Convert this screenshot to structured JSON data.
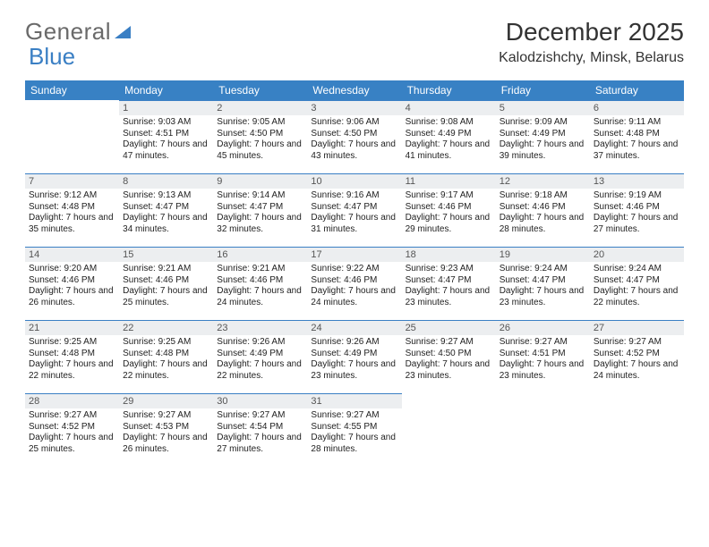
{
  "logo": {
    "part1": "General",
    "part2": "Blue"
  },
  "title": "December 2025",
  "location": "Kalodzishchy, Minsk, Belarus",
  "colors": {
    "header_bg": "#3881c4",
    "header_text": "#ffffff",
    "daynum_bg": "#eceef0",
    "row_border": "#3a7fc4",
    "body_text": "#222222",
    "title_text": "#333333",
    "logo_gray": "#6a6a6a",
    "logo_blue": "#3a7fc4"
  },
  "weekdays": [
    "Sunday",
    "Monday",
    "Tuesday",
    "Wednesday",
    "Thursday",
    "Friday",
    "Saturday"
  ],
  "weeks": [
    [
      {
        "n": "",
        "sr": "",
        "ss": "",
        "dl": ""
      },
      {
        "n": "1",
        "sr": "9:03 AM",
        "ss": "4:51 PM",
        "dl": "7 hours and 47 minutes."
      },
      {
        "n": "2",
        "sr": "9:05 AM",
        "ss": "4:50 PM",
        "dl": "7 hours and 45 minutes."
      },
      {
        "n": "3",
        "sr": "9:06 AM",
        "ss": "4:50 PM",
        "dl": "7 hours and 43 minutes."
      },
      {
        "n": "4",
        "sr": "9:08 AM",
        "ss": "4:49 PM",
        "dl": "7 hours and 41 minutes."
      },
      {
        "n": "5",
        "sr": "9:09 AM",
        "ss": "4:49 PM",
        "dl": "7 hours and 39 minutes."
      },
      {
        "n": "6",
        "sr": "9:11 AM",
        "ss": "4:48 PM",
        "dl": "7 hours and 37 minutes."
      }
    ],
    [
      {
        "n": "7",
        "sr": "9:12 AM",
        "ss": "4:48 PM",
        "dl": "7 hours and 35 minutes."
      },
      {
        "n": "8",
        "sr": "9:13 AM",
        "ss": "4:47 PM",
        "dl": "7 hours and 34 minutes."
      },
      {
        "n": "9",
        "sr": "9:14 AM",
        "ss": "4:47 PM",
        "dl": "7 hours and 32 minutes."
      },
      {
        "n": "10",
        "sr": "9:16 AM",
        "ss": "4:47 PM",
        "dl": "7 hours and 31 minutes."
      },
      {
        "n": "11",
        "sr": "9:17 AM",
        "ss": "4:46 PM",
        "dl": "7 hours and 29 minutes."
      },
      {
        "n": "12",
        "sr": "9:18 AM",
        "ss": "4:46 PM",
        "dl": "7 hours and 28 minutes."
      },
      {
        "n": "13",
        "sr": "9:19 AM",
        "ss": "4:46 PM",
        "dl": "7 hours and 27 minutes."
      }
    ],
    [
      {
        "n": "14",
        "sr": "9:20 AM",
        "ss": "4:46 PM",
        "dl": "7 hours and 26 minutes."
      },
      {
        "n": "15",
        "sr": "9:21 AM",
        "ss": "4:46 PM",
        "dl": "7 hours and 25 minutes."
      },
      {
        "n": "16",
        "sr": "9:21 AM",
        "ss": "4:46 PM",
        "dl": "7 hours and 24 minutes."
      },
      {
        "n": "17",
        "sr": "9:22 AM",
        "ss": "4:46 PM",
        "dl": "7 hours and 24 minutes."
      },
      {
        "n": "18",
        "sr": "9:23 AM",
        "ss": "4:47 PM",
        "dl": "7 hours and 23 minutes."
      },
      {
        "n": "19",
        "sr": "9:24 AM",
        "ss": "4:47 PM",
        "dl": "7 hours and 23 minutes."
      },
      {
        "n": "20",
        "sr": "9:24 AM",
        "ss": "4:47 PM",
        "dl": "7 hours and 22 minutes."
      }
    ],
    [
      {
        "n": "21",
        "sr": "9:25 AM",
        "ss": "4:48 PM",
        "dl": "7 hours and 22 minutes."
      },
      {
        "n": "22",
        "sr": "9:25 AM",
        "ss": "4:48 PM",
        "dl": "7 hours and 22 minutes."
      },
      {
        "n": "23",
        "sr": "9:26 AM",
        "ss": "4:49 PM",
        "dl": "7 hours and 22 minutes."
      },
      {
        "n": "24",
        "sr": "9:26 AM",
        "ss": "4:49 PM",
        "dl": "7 hours and 23 minutes."
      },
      {
        "n": "25",
        "sr": "9:27 AM",
        "ss": "4:50 PM",
        "dl": "7 hours and 23 minutes."
      },
      {
        "n": "26",
        "sr": "9:27 AM",
        "ss": "4:51 PM",
        "dl": "7 hours and 23 minutes."
      },
      {
        "n": "27",
        "sr": "9:27 AM",
        "ss": "4:52 PM",
        "dl": "7 hours and 24 minutes."
      }
    ],
    [
      {
        "n": "28",
        "sr": "9:27 AM",
        "ss": "4:52 PM",
        "dl": "7 hours and 25 minutes."
      },
      {
        "n": "29",
        "sr": "9:27 AM",
        "ss": "4:53 PM",
        "dl": "7 hours and 26 minutes."
      },
      {
        "n": "30",
        "sr": "9:27 AM",
        "ss": "4:54 PM",
        "dl": "7 hours and 27 minutes."
      },
      {
        "n": "31",
        "sr": "9:27 AM",
        "ss": "4:55 PM",
        "dl": "7 hours and 28 minutes."
      },
      {
        "n": "",
        "sr": "",
        "ss": "",
        "dl": ""
      },
      {
        "n": "",
        "sr": "",
        "ss": "",
        "dl": ""
      },
      {
        "n": "",
        "sr": "",
        "ss": "",
        "dl": ""
      }
    ]
  ],
  "labels": {
    "sunrise": "Sunrise: ",
    "sunset": "Sunset: ",
    "daylight": "Daylight: "
  }
}
